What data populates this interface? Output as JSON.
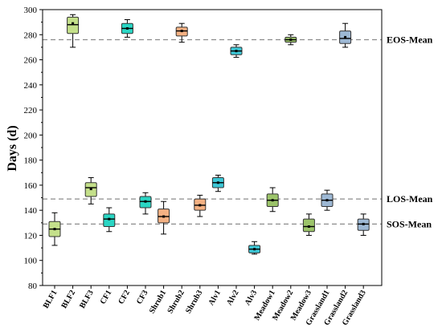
{
  "chart_data": {
    "type": "box",
    "ylabel": "Days (d)",
    "ylim": [
      80,
      300
    ],
    "yticks": [
      80,
      100,
      120,
      140,
      160,
      180,
      200,
      220,
      240,
      260,
      280,
      300
    ],
    "grid": false,
    "categories": [
      "BLF1",
      "BLF2",
      "BLF3",
      "CF1",
      "CF2",
      "CF3",
      "Shrub1",
      "Shrub2",
      "Shrub3",
      "Alv1",
      "Alv2",
      "Alv3",
      "Meadow1",
      "Meadow2",
      "Meadow3",
      "Grassland1",
      "Grassland2",
      "Grassland3"
    ],
    "boxes": [
      {
        "category": "BLF1",
        "whisker_low": 112,
        "q1": 119,
        "median": 125,
        "mean": 125,
        "q3": 131,
        "whisker_high": 138,
        "color": "#c4e08a"
      },
      {
        "category": "BLF2",
        "whisker_low": 270,
        "q1": 281,
        "median": 288,
        "mean": 289,
        "q3": 294,
        "whisker_high": 296,
        "color": "#c4e08a"
      },
      {
        "category": "BLF3",
        "whisker_low": 145,
        "q1": 151,
        "median": 158,
        "mean": 157,
        "q3": 162,
        "whisker_high": 166,
        "color": "#c4e08a"
      },
      {
        "category": "CF1",
        "whisker_low": 123,
        "q1": 127,
        "median": 133,
        "mean": 133,
        "q3": 137,
        "whisker_high": 142,
        "color": "#2ad6c4"
      },
      {
        "category": "CF2",
        "whisker_low": 278,
        "q1": 281,
        "median": 285,
        "mean": 285,
        "q3": 289,
        "whisker_high": 292,
        "color": "#2ad6c4"
      },
      {
        "category": "CF3",
        "whisker_low": 137,
        "q1": 142,
        "median": 147,
        "mean": 147,
        "q3": 151,
        "whisker_high": 154,
        "color": "#2ad6c4"
      },
      {
        "category": "Shrub1",
        "whisker_low": 121,
        "q1": 130,
        "median": 135,
        "mean": 135,
        "q3": 141,
        "whisker_high": 147,
        "color": "#f4b183"
      },
      {
        "category": "Shrub2",
        "whisker_low": 274,
        "q1": 279,
        "median": 283,
        "mean": 283,
        "q3": 286,
        "whisker_high": 289,
        "color": "#f4b183"
      },
      {
        "category": "Shrub3",
        "whisker_low": 135,
        "q1": 140,
        "median": 144,
        "mean": 144,
        "q3": 149,
        "whisker_high": 152,
        "color": "#f4b183"
      },
      {
        "category": "Alv1",
        "whisker_low": 155,
        "q1": 158,
        "median": 162,
        "mean": 162,
        "q3": 166,
        "whisker_high": 168,
        "color": "#3cc7d6"
      },
      {
        "category": "Alv2",
        "whisker_low": 262,
        "q1": 264,
        "median": 267,
        "mean": 267,
        "q3": 270,
        "whisker_high": 272,
        "color": "#3cc7d6"
      },
      {
        "category": "Alv3",
        "whisker_low": 105,
        "q1": 106,
        "median": 109,
        "mean": 109,
        "q3": 112,
        "whisker_high": 115,
        "color": "#3cc7d6"
      },
      {
        "category": "Meadow1",
        "whisker_low": 139,
        "q1": 143,
        "median": 148,
        "mean": 148,
        "q3": 153,
        "whisker_high": 158,
        "color": "#9cc46a"
      },
      {
        "category": "Meadow2",
        "whisker_low": 272,
        "q1": 274,
        "median": 276,
        "mean": 276,
        "q3": 278,
        "whisker_high": 280,
        "color": "#9cc46a"
      },
      {
        "category": "Meadow3",
        "whisker_low": 120,
        "q1": 123,
        "median": 127,
        "mean": 127,
        "q3": 133,
        "whisker_high": 137,
        "color": "#9cc46a"
      },
      {
        "category": "Grassland1",
        "whisker_low": 140,
        "q1": 143,
        "median": 148,
        "mean": 148,
        "q3": 153,
        "whisker_high": 156,
        "color": "#9db8d4"
      },
      {
        "category": "Grassland2",
        "whisker_low": 270,
        "q1": 273,
        "median": 277,
        "mean": 278,
        "q3": 283,
        "whisker_high": 289,
        "color": "#9db8d4"
      },
      {
        "category": "Grassland3",
        "whisker_low": 120,
        "q1": 124,
        "median": 129,
        "mean": 129,
        "q3": 133,
        "whisker_high": 137,
        "color": "#9db8d4"
      }
    ],
    "reference_lines": [
      {
        "label": "EOS-Mean",
        "value": 276
      },
      {
        "label": "LOS-Mean",
        "value": 149
      },
      {
        "label": "SOS-Mean",
        "value": 129
      }
    ]
  }
}
